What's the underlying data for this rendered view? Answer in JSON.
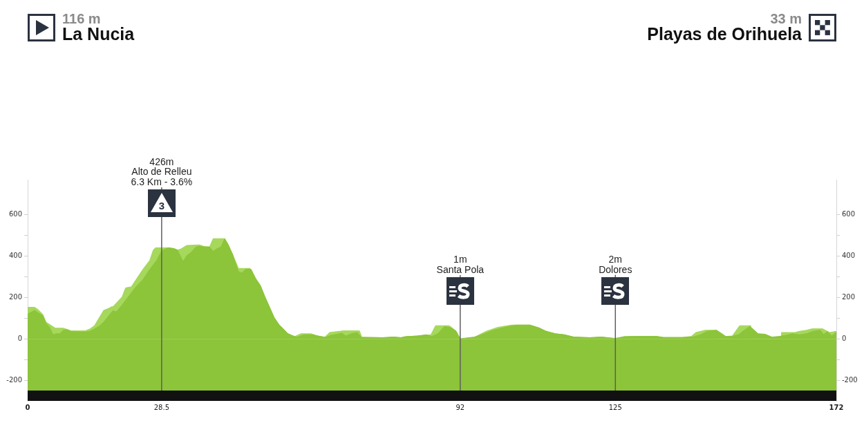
{
  "chart_data": {
    "type": "area",
    "annotations": [
      "116 m",
      "La Nucia",
      "33 m",
      "Playas de Orihuela",
      "3"
    ],
    "series": [
      {
        "color": "#a5d85b",
        "x": [
          0,
          1.47,
          2.21,
          3.19,
          3.92,
          5.88,
          7.59,
          9.31,
          12.25,
          13.23,
          14.21,
          16.17,
          17.15,
          17.89,
          18.13,
          20.09,
          20.83,
          22.05,
          23.03,
          24.5,
          25.97,
          26.71,
          27.2,
          29.88,
          31.1,
          31.85,
          32.59,
          33.81,
          36.51,
          37.73,
          38.71,
          39.45,
          41.9,
          42.63,
          43.61,
          44.84,
          47.3,
          48.52,
          49.5,
          50.48,
          51.46,
          52.44,
          53.42,
          54.4,
          55.38,
          56.85,
          58.08,
          60.28,
          61.75,
          63.22,
          64.2,
          67.14,
          70.57,
          71.06,
          73.02,
          75.47,
          77.92,
          79.39,
          80.37,
          82.82,
          85.77,
          86.75,
          89.69,
          91.15,
          92,
          95.07,
          97.52,
          99.97,
          102.91,
          106.83,
          108.79,
          110.26,
          112.22,
          114.18,
          116.14,
          119.57,
          122.02,
          125,
          126.93,
          129.38,
          133.79,
          135.26,
          139.18,
          141.14,
          142.12,
          144.08,
          146.53,
          148,
          149.96,
          151.43,
          153.88,
          155.35,
          156.82,
          158.29,
          160.25,
          163.19,
          164.17,
          165.64,
          166.86,
          169.07,
          170.54,
          172
        ],
        "values": [
          153,
          153,
          142,
          120,
          81,
          52,
          52,
          39,
          39,
          48,
          64,
          138,
          147,
          156,
          156,
          203,
          247,
          252,
          286,
          336,
          380,
          430,
          441,
          441,
          437,
          430,
          435,
          452,
          455,
          446,
          446,
          485,
          485,
          457,
          408,
          341,
          341,
          291,
          258,
          203,
          153,
          103,
          70,
          48,
          25,
          12,
          25,
          25,
          14,
          9,
          31,
          39,
          39,
          9,
          7,
          6,
          9,
          6,
          11,
          14,
          20,
          64,
          64,
          37,
          null,
          9,
          37,
          56,
          67,
          67,
          53,
          37,
          25,
          20,
          9,
          6,
          9,
          2,
          11,
          12,
          12,
          7,
          7,
          12,
          31,
          42,
          42,
          null,
          17,
          64,
          64,
          null,
          null,
          null,
          31,
          31,
          37,
          42,
          49,
          49,
          31,
          37
        ]
      },
      {
        "color": "#8cc43a",
        "x": [
          0,
          1.47,
          2.45,
          3.19,
          3.92,
          4.66,
          5.39,
          6.13,
          6.86,
          7.59,
          8.33,
          9.06,
          9.8,
          11.27,
          12.25,
          13.23,
          14.21,
          15.19,
          16.17,
          17.15,
          18.13,
          18.87,
          20.09,
          21.56,
          23.03,
          24.5,
          25.97,
          27.44,
          28.5,
          29.88,
          31.1,
          31.85,
          33.07,
          33.81,
          34.79,
          35.77,
          36.51,
          37.24,
          38.71,
          39.45,
          40.18,
          41.16,
          41.9,
          42.63,
          43.61,
          44.84,
          45.57,
          46.31,
          47.05,
          47.54,
          48.52,
          49.5,
          50.48,
          51.46,
          52.44,
          53.42,
          54.4,
          55.38,
          56.36,
          57.34,
          58.81,
          60.52,
          61.75,
          63.22,
          64.44,
          65.67,
          66.89,
          67.63,
          68.85,
          70.08,
          71.06,
          73.02,
          75.47,
          77.92,
          79.39,
          80.37,
          82.82,
          84.78,
          86.01,
          87.23,
          88.7,
          90.17,
          91.15,
          92,
          95.07,
          96.54,
          98.99,
          101.44,
          103.89,
          106.83,
          108.79,
          110.26,
          112.22,
          114.18,
          116.14,
          119.57,
          122.02,
          125,
          126.93,
          129.38,
          133.79,
          135.26,
          139.18,
          141.63,
          143.1,
          144.57,
          146.53,
          147.27,
          148.49,
          149.96,
          151.18,
          152.41,
          153.63,
          155.35,
          156.82,
          158.29,
          159.76,
          161.23,
          162.7,
          164.17,
          165.64,
          167.11,
          168.58,
          169.32,
          170.05,
          171.03,
          172
        ],
        "values": [
          120,
          138,
          123,
          114,
          75,
          56,
          20,
          25,
          25,
          42,
          45,
          37,
          35,
          34,
          34,
          37,
          48,
          61,
          81,
          109,
          136,
          131,
          164,
          208,
          252,
          286,
          336,
          380,
          426,
          441,
          437,
          430,
          374,
          402,
          419,
          444,
          449,
          446,
          444,
          424,
          435,
          446,
          485,
          457,
          408,
          325,
          319,
          336,
          338,
          336,
          291,
          258,
          203,
          153,
          103,
          70,
          48,
          25,
          14,
          9,
          20,
          20,
          14,
          7,
          17,
          22,
          28,
          14,
          25,
          31,
          6,
          7,
          6,
          9,
          6,
          11,
          14,
          20,
          12,
          25,
          61,
          53,
          37,
          1,
          9,
          20,
          42,
          56,
          67,
          67,
          53,
          37,
          25,
          20,
          9,
          6,
          9,
          2,
          11,
          12,
          12,
          7,
          7,
          10,
          20,
          37,
          42,
          31,
          12,
          14,
          20,
          42,
          61,
          25,
          23,
          9,
          12,
          17,
          25,
          20,
          25,
          37,
          42,
          20,
          37,
          14,
          33
        ]
      }
    ],
    "xlim": [
      0,
      172
    ],
    "xticks": [
      0,
      28.5,
      92,
      125,
      172
    ],
    "ylim": [
      -300,
      770
    ],
    "yticks": [
      -200,
      {
        "value": -100,
        "label": null
      },
      0,
      {
        "value": 100,
        "label": null
      },
      200,
      {
        "value": 300,
        "label": null
      },
      400,
      {
        "value": 500,
        "label": null
      },
      600
    ],
    "y2lim": [
      -300,
      770
    ],
    "y2ticks": [
      -200,
      {
        "value": -100,
        "label": null
      },
      0,
      {
        "value": 100,
        "label": null
      },
      200,
      {
        "value": 300,
        "label": null
      },
      400,
      {
        "value": 500,
        "label": null
      },
      600
    ],
    "ref_lines": [
      {
        "axis": "x",
        "value": 28.5,
        "label": "426m\nAlto de Relleu\n6.3 Km - 3.6%"
      },
      {
        "axis": "x",
        "value": 92,
        "label": "1m\nSanta Pola"
      },
      {
        "axis": "x",
        "value": 125,
        "label": "2m\nDolores"
      }
    ],
    "bands": [
      {
        "axis": "y",
        "from": -250,
        "to": 0,
        "color": "#8cc43a"
      },
      {
        "axis": "y",
        "from": -300,
        "to": -250,
        "color": "#111111"
      }
    ]
  }
}
